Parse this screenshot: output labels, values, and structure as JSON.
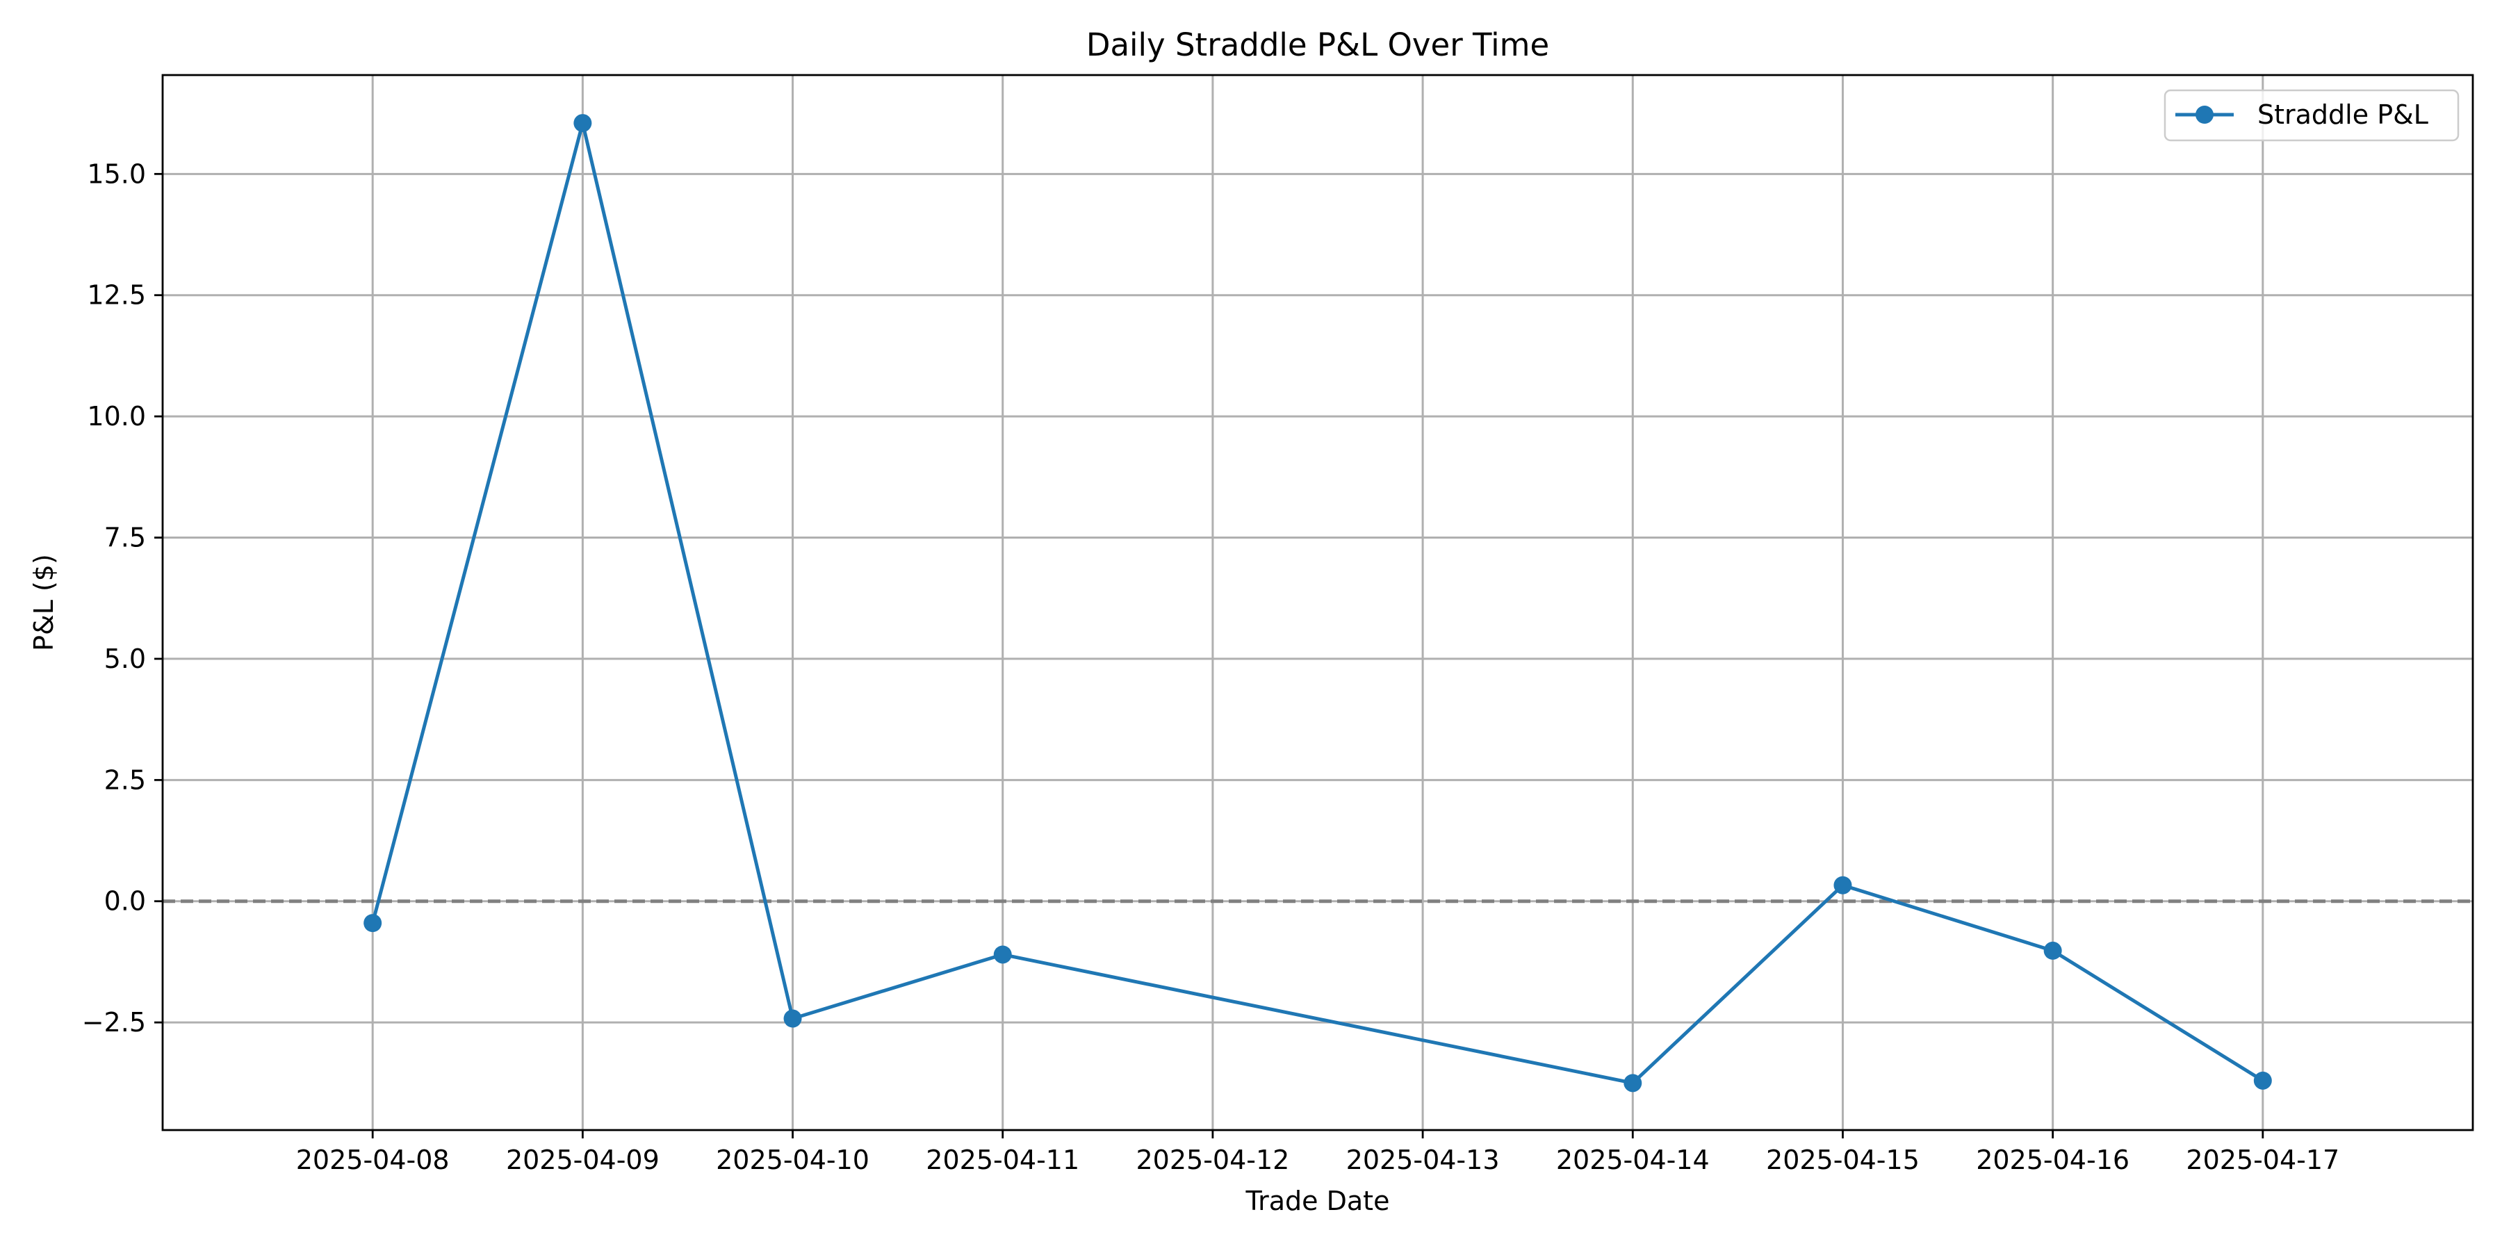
{
  "chart_data": {
    "type": "line",
    "title": "Daily Straddle P&L Over Time",
    "xlabel": "Trade Date",
    "ylabel": "P&L ($)",
    "x_ticks": [
      "2025-04-08",
      "2025-04-09",
      "2025-04-10",
      "2025-04-11",
      "2025-04-12",
      "2025-04-13",
      "2025-04-14",
      "2025-04-15",
      "2025-04-16",
      "2025-04-17"
    ],
    "y_ticks": [
      "−2.5",
      "0.0",
      "2.5",
      "5.0",
      "7.5",
      "10.0",
      "12.5",
      "15.0"
    ],
    "xlim": [
      "2025-04-07",
      "2025-04-18"
    ],
    "ylim": [
      -4.72,
      17.04
    ],
    "grid": true,
    "legend_position": "top-right",
    "reference_line": {
      "y": 0,
      "style": "dashed",
      "color": "#808080"
    },
    "series": [
      {
        "name": "Straddle P&L",
        "color": "#1f77b4",
        "marker": "circle",
        "points": [
          {
            "x": "2025-04-08",
            "y": -0.45
          },
          {
            "x": "2025-04-09",
            "y": 16.05
          },
          {
            "x": "2025-04-10",
            "y": -2.42
          },
          {
            "x": "2025-04-11",
            "y": -1.1
          },
          {
            "x": "2025-04-14",
            "y": -3.75
          },
          {
            "x": "2025-04-15",
            "y": 0.33
          },
          {
            "x": "2025-04-16",
            "y": -1.02
          },
          {
            "x": "2025-04-17",
            "y": -3.7
          }
        ]
      }
    ]
  }
}
